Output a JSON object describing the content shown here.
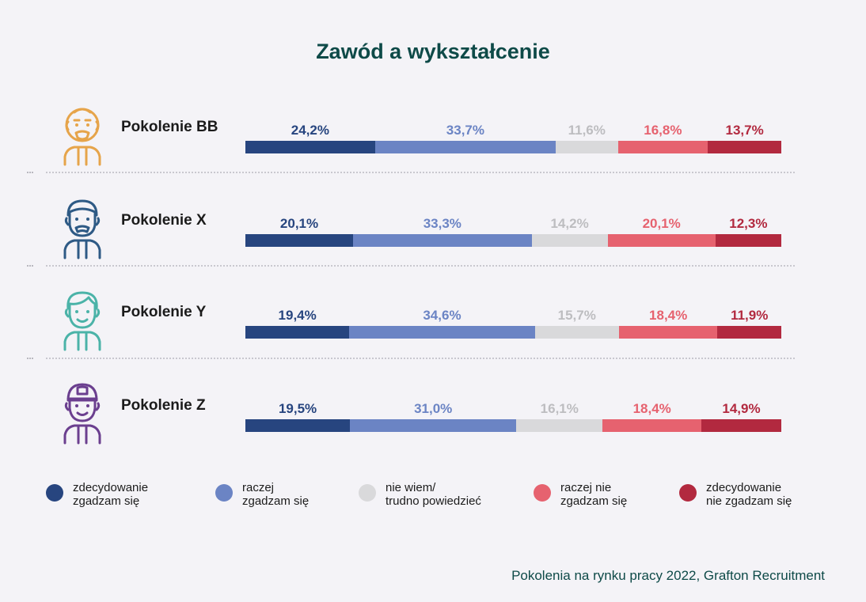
{
  "title": "Zawód a wykształcenie",
  "source": "Pokolenia na rynku pracy 2022, Grafton Recruitment",
  "colors": [
    "#27457f",
    "#6b84c4",
    "#d9d9db",
    "#e6626f",
    "#b2293f"
  ],
  "label_colors": [
    "#27457f",
    "#6b84c4",
    "#bdbdc0",
    "#e6626f",
    "#b2293f"
  ],
  "avatar_icons": [
    {
      "name": "old-man-icon",
      "color": "#e6a44a"
    },
    {
      "name": "man-icon",
      "color": "#2e5a85"
    },
    {
      "name": "young-man-icon",
      "color": "#4bb3a8"
    },
    {
      "name": "cap-boy-icon",
      "color": "#6b3f8f"
    }
  ],
  "legend": [
    {
      "line1": "zdecydowanie",
      "line2": "zgadzam się"
    },
    {
      "line1": "raczej",
      "line2": "zgadzam się"
    },
    {
      "line1": "nie wiem/",
      "line2": "trudno powiedzieć"
    },
    {
      "line1": "raczej nie",
      "line2": "zgadzam się"
    },
    {
      "line1": "zdecydowanie",
      "line2": "nie zgadzam się"
    }
  ],
  "chart_data": {
    "type": "bar",
    "stacked": true,
    "orientation": "horizontal",
    "title": "Zawód a wykształcenie",
    "categories": [
      "Pokolenie BB",
      "Pokolenie X",
      "Pokolenie Y",
      "Pokolenie Z"
    ],
    "series": [
      {
        "name": "zdecydowanie zgadzam się",
        "values": [
          24.2,
          20.1,
          19.4,
          19.5
        ]
      },
      {
        "name": "raczej zgadzam się",
        "values": [
          33.7,
          33.3,
          34.6,
          31.0
        ]
      },
      {
        "name": "nie wiem/ trudno powiedzieć",
        "values": [
          11.6,
          14.2,
          15.7,
          16.1
        ]
      },
      {
        "name": "raczej nie zgadzam się",
        "values": [
          16.8,
          20.1,
          18.4,
          18.4
        ]
      },
      {
        "name": "zdecydowanie nie zgadzam się",
        "values": [
          13.7,
          12.3,
          11.9,
          14.9
        ]
      }
    ],
    "data_labels": [
      [
        "24,2%",
        "33,7%",
        "11,6%",
        "16,8%",
        "13,7%"
      ],
      [
        "20,1%",
        "33,3%",
        "14,2%",
        "20,1%",
        "12,3%"
      ],
      [
        "19,4%",
        "34,6%",
        "15,7%",
        "18,4%",
        "11,9%"
      ],
      [
        "19,5%",
        "31,0%",
        "16,1%",
        "18,4%",
        "14,9%"
      ]
    ],
    "xlim": [
      0,
      100
    ],
    "legend_position": "bottom"
  }
}
